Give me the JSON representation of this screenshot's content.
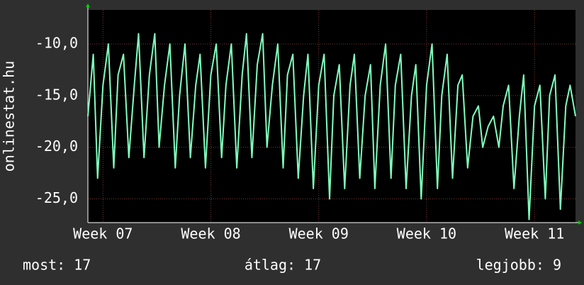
{
  "chart_data": {
    "type": "line",
    "ylabel": "onlinestat.hu",
    "annotations": [
      "most: 17",
      "átlag: 17",
      "legjobb: 9"
    ],
    "color": "#80ffbf",
    "grid": true,
    "x": [
      6.86,
      6.91,
      6.95,
      7.0,
      7.05,
      7.1,
      7.14,
      7.19,
      7.24,
      7.29,
      7.33,
      7.38,
      7.43,
      7.48,
      7.52,
      7.57,
      7.62,
      7.67,
      7.71,
      7.76,
      7.81,
      7.86,
      7.9,
      7.95,
      8.0,
      8.05,
      8.1,
      8.14,
      8.19,
      8.24,
      8.29,
      8.33,
      8.38,
      8.43,
      8.48,
      8.52,
      8.57,
      8.62,
      8.67,
      8.71,
      8.76,
      8.81,
      8.86,
      8.9,
      8.95,
      9.0,
      9.05,
      9.1,
      9.14,
      9.19,
      9.24,
      9.29,
      9.33,
      9.38,
      9.43,
      9.48,
      9.52,
      9.57,
      9.62,
      9.67,
      9.71,
      9.76,
      9.81,
      9.86,
      9.9,
      9.95,
      10.0,
      10.05,
      10.1,
      10.14,
      10.19,
      10.24,
      10.29,
      10.33,
      10.38,
      10.43,
      10.48,
      10.52,
      10.57,
      10.62,
      10.67,
      10.71,
      10.76,
      10.81,
      10.86,
      10.9,
      10.95,
      11.0,
      11.05,
      11.1,
      11.14,
      11.19,
      11.24,
      11.29,
      11.33,
      11.38
    ],
    "values": [
      -17,
      -11,
      -23,
      -14,
      -10,
      -22,
      -13,
      -11,
      -21,
      -14,
      -9,
      -21,
      -13,
      -9,
      -20,
      -14,
      -10,
      -22,
      -15,
      -10,
      -21,
      -14,
      -11,
      -22,
      -13,
      -10,
      -21,
      -14,
      -10,
      -22,
      -13,
      -9,
      -21,
      -12,
      -9,
      -20,
      -14,
      -10,
      -22,
      -13,
      -11,
      -23,
      -15,
      -11,
      -24,
      -14,
      -11,
      -25,
      -15,
      -12,
      -24,
      -14,
      -11,
      -23,
      -15,
      -12,
      -24,
      -14,
      -10,
      -23,
      -14,
      -11,
      -24,
      -15,
      -12,
      -25,
      -14,
      -10,
      -24,
      -15,
      -11,
      -23,
      -14,
      -13,
      -22,
      -17,
      -16,
      -20,
      -18,
      -17,
      -20,
      -16,
      -14,
      -24,
      -17,
      -13,
      -27,
      -16,
      -14,
      -25,
      -15,
      -13,
      -26,
      -16,
      -14,
      -17
    ],
    "xlim": [
      6.86,
      11.38
    ],
    "xticks": [
      {
        "value": 7,
        "label": "Week 07"
      },
      {
        "value": 8,
        "label": "Week 08"
      },
      {
        "value": 9,
        "label": "Week 09"
      },
      {
        "value": 10,
        "label": "Week 10"
      },
      {
        "value": 11,
        "label": "Week 11"
      }
    ],
    "ylim": [
      -27.3,
      -6.7
    ],
    "yticks": [
      {
        "value": -10,
        "label": "-10,0"
      },
      {
        "value": -15,
        "label": "-15,0"
      },
      {
        "value": -20,
        "label": "-20,0"
      },
      {
        "value": -25,
        "label": "-25,0"
      }
    ]
  }
}
